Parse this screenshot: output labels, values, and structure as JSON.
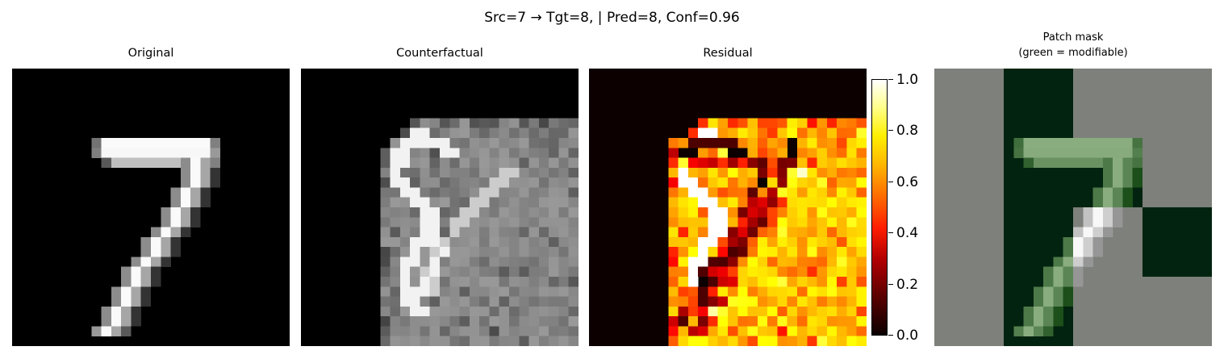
{
  "suptitle": "Src=7 → Tgt=8, | Pred=8, Conf=0.96",
  "panels": [
    {
      "title": "Original"
    },
    {
      "title": "Counterfactual"
    },
    {
      "title": "Residual"
    },
    {
      "title_line1": "Patch mask",
      "title_line2": "(green = modifiable)"
    }
  ],
  "colorbar": {
    "colormap": "hot",
    "ticks": [
      "1.0",
      "0.8",
      "0.6",
      "0.4",
      "0.2",
      "0.0"
    ]
  },
  "colors": {
    "mask_background": "#7d807b",
    "mask_modifiable": "#01230f",
    "residual_background": "#0c0000"
  }
}
